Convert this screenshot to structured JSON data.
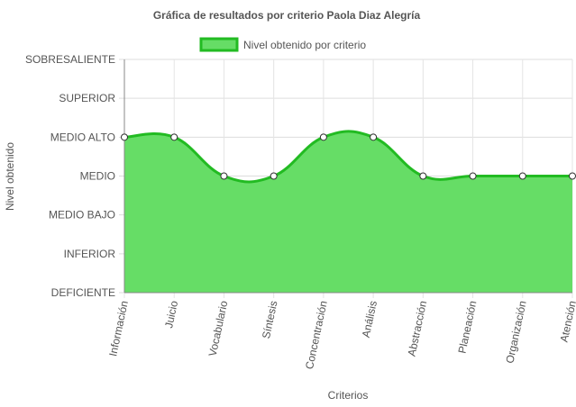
{
  "chart_data": {
    "type": "area",
    "title": "Gráfica de resultados por criterio Paola Diaz Alegría",
    "xlabel": "Criterios",
    "ylabel": "Nivel obtenido",
    "y_levels": [
      "DEFICIENTE",
      "INFERIOR",
      "MEDIO BAJO",
      "MEDIO",
      "MEDIO ALTO",
      "SUPERIOR",
      "SOBRESALIENTE"
    ],
    "categories": [
      "Información",
      "Juicio",
      "Vocabulario",
      "Síntesis",
      "Concentración",
      "Análisis",
      "Abstracción",
      "Planeación",
      "Organización",
      "Atención"
    ],
    "series": [
      {
        "name": "Nivel obtenido por criterio",
        "values": [
          "MEDIO ALTO",
          "MEDIO ALTO",
          "MEDIO",
          "MEDIO",
          "MEDIO ALTO",
          "MEDIO ALTO",
          "MEDIO",
          "MEDIO",
          "MEDIO",
          "MEDIO"
        ],
        "fill_color": "#66dd66",
        "line_color": "#22bb22"
      }
    ],
    "grid": true,
    "legend_position": "top"
  }
}
